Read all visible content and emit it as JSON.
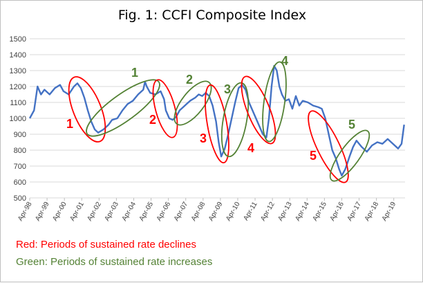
{
  "chart_data": {
    "type": "line",
    "title": "Fig. 1: CCFI Composite Index",
    "xlabel": "",
    "ylabel": "",
    "ylim": [
      500,
      1500
    ],
    "yticks": [
      500,
      600,
      700,
      800,
      900,
      1000,
      1100,
      1200,
      1300,
      1400,
      1500
    ],
    "grid": true,
    "xticks": [
      "Apr-98",
      "Apr-99",
      "Apr-00",
      "Apr-01",
      "Apr-02",
      "Apr-03",
      "Apr-04",
      "Apr-05",
      "Apr-06",
      "Apr-07",
      "Apr-08",
      "Apr-09",
      "Apr-10",
      "Apr-11",
      "Apr-12",
      "Apr-13",
      "Apr-14",
      "Apr-15",
      "Apr-16",
      "Apr-17",
      "Apr-18",
      "Apr-19"
    ],
    "series": [
      {
        "color": "#4472c4",
        "points": [
          [
            1998.25,
            1000
          ],
          [
            1998.5,
            1050
          ],
          [
            1998.7,
            1200
          ],
          [
            1998.9,
            1150
          ],
          [
            1999.1,
            1180
          ],
          [
            1999.4,
            1150
          ],
          [
            1999.7,
            1190
          ],
          [
            2000.0,
            1210
          ],
          [
            2000.2,
            1170
          ],
          [
            2000.5,
            1150
          ],
          [
            2000.8,
            1200
          ],
          [
            2001.0,
            1220
          ],
          [
            2001.2,
            1190
          ],
          [
            2001.4,
            1130
          ],
          [
            2001.6,
            1050
          ],
          [
            2001.8,
            980
          ],
          [
            2002.0,
            930
          ],
          [
            2002.2,
            910
          ],
          [
            2002.5,
            930
          ],
          [
            2002.8,
            960
          ],
          [
            2003.0,
            990
          ],
          [
            2003.3,
            1000
          ],
          [
            2003.6,
            1050
          ],
          [
            2003.9,
            1090
          ],
          [
            2004.2,
            1110
          ],
          [
            2004.5,
            1150
          ],
          [
            2004.8,
            1180
          ],
          [
            2004.9,
            1230
          ],
          [
            2005.0,
            1200
          ],
          [
            2005.2,
            1160
          ],
          [
            2005.5,
            1150
          ],
          [
            2005.8,
            1170
          ],
          [
            2006.0,
            1120
          ],
          [
            2006.1,
            1050
          ],
          [
            2006.3,
            1000
          ],
          [
            2006.5,
            990
          ],
          [
            2006.7,
            1010
          ],
          [
            2006.9,
            1050
          ],
          [
            2007.1,
            1070
          ],
          [
            2007.3,
            1090
          ],
          [
            2007.5,
            1110
          ],
          [
            2007.8,
            1130
          ],
          [
            2008.0,
            1150
          ],
          [
            2008.2,
            1140
          ],
          [
            2008.4,
            1160
          ],
          [
            2008.6,
            1140
          ],
          [
            2008.8,
            1080
          ],
          [
            2009.0,
            980
          ],
          [
            2009.15,
            850
          ],
          [
            2009.3,
            760
          ],
          [
            2009.5,
            810
          ],
          [
            2009.7,
            900
          ],
          [
            2009.9,
            1000
          ],
          [
            2010.1,
            1100
          ],
          [
            2010.3,
            1190
          ],
          [
            2010.5,
            1210
          ],
          [
            2010.7,
            1180
          ],
          [
            2010.9,
            1100
          ],
          [
            2011.1,
            1050
          ],
          [
            2011.3,
            1000
          ],
          [
            2011.5,
            950
          ],
          [
            2011.7,
            900
          ],
          [
            2011.9,
            880
          ],
          [
            2012.05,
            1000
          ],
          [
            2012.2,
            1200
          ],
          [
            2012.35,
            1330
          ],
          [
            2012.5,
            1300
          ],
          [
            2012.65,
            1200
          ],
          [
            2012.8,
            1150
          ],
          [
            2013.0,
            1110
          ],
          [
            2013.2,
            1120
          ],
          [
            2013.4,
            1060
          ],
          [
            2013.6,
            1140
          ],
          [
            2013.8,
            1080
          ],
          [
            2014.0,
            1110
          ],
          [
            2014.3,
            1100
          ],
          [
            2014.6,
            1080
          ],
          [
            2014.9,
            1070
          ],
          [
            2015.1,
            1060
          ],
          [
            2015.3,
            1000
          ],
          [
            2015.5,
            900
          ],
          [
            2015.7,
            800
          ],
          [
            2015.9,
            750
          ],
          [
            2016.1,
            680
          ],
          [
            2016.25,
            640
          ],
          [
            2016.45,
            680
          ],
          [
            2016.7,
            760
          ],
          [
            2016.9,
            820
          ],
          [
            2017.1,
            860
          ],
          [
            2017.4,
            820
          ],
          [
            2017.7,
            790
          ],
          [
            2018.0,
            830
          ],
          [
            2018.3,
            850
          ],
          [
            2018.6,
            840
          ],
          [
            2018.9,
            870
          ],
          [
            2019.2,
            840
          ],
          [
            2019.5,
            810
          ],
          [
            2019.7,
            840
          ],
          [
            2019.85,
            960
          ]
        ]
      }
    ],
    "annotations": [
      {
        "label": "1",
        "color": "#ff0000"
      },
      {
        "label": "1",
        "color": "#548235"
      },
      {
        "label": "2",
        "color": "#ff0000"
      },
      {
        "label": "2",
        "color": "#548235"
      },
      {
        "label": "3",
        "color": "#ff0000"
      },
      {
        "label": "3",
        "color": "#548235"
      },
      {
        "label": "4",
        "color": "#ff0000"
      },
      {
        "label": "4",
        "color": "#548235"
      },
      {
        "label": "5",
        "color": "#ff0000"
      },
      {
        "label": "5",
        "color": "#548235"
      }
    ]
  },
  "legend_notes": {
    "red": "Red: Periods of sustained rate declines",
    "green": "Green: Periods of sustained rate increases",
    "red_color": "#ff0000",
    "green_color": "#548235"
  }
}
